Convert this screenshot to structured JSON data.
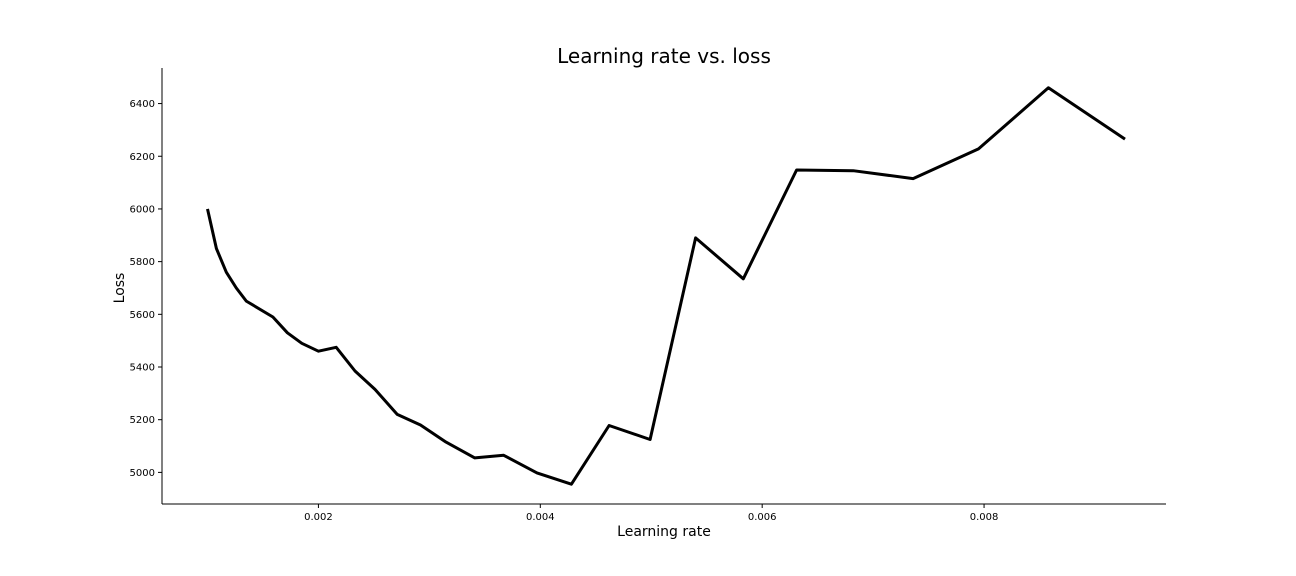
{
  "chart_data": {
    "type": "line",
    "title": "Learning rate vs. loss",
    "xlabel": "Learning rate",
    "ylabel": "Loss",
    "xlim": [
      0.00059,
      0.00964
    ],
    "ylim": [
      4880,
      6535
    ],
    "xticks": [
      0.002,
      0.004,
      0.006,
      0.008
    ],
    "xtick_labels": [
      "0.002",
      "0.004",
      "0.006",
      "0.008"
    ],
    "yticks": [
      5000,
      5200,
      5400,
      5600,
      5800,
      6000,
      6200,
      6400
    ],
    "ytick_labels": [
      "5000",
      "5200",
      "5400",
      "5600",
      "5800",
      "6000",
      "6200",
      "6400"
    ],
    "grid": false,
    "legend": "none",
    "color": "#000000",
    "series": [
      {
        "x": [
          0.001,
          0.00108,
          0.00117,
          0.00126,
          0.00135,
          0.00159,
          0.00172,
          0.00185,
          0.002,
          0.00216,
          0.00233,
          0.00251,
          0.00271,
          0.00292,
          0.00315,
          0.00341,
          0.00367,
          0.00397,
          0.00428,
          0.00462,
          0.00499,
          0.0054,
          0.00583,
          0.00631,
          0.00682,
          0.00736,
          0.00795,
          0.00858,
          0.00927
        ],
        "y": [
          6000,
          5850,
          5760,
          5700,
          5650,
          5590,
          5530,
          5490,
          5460,
          5475,
          5385,
          5315,
          5220,
          5180,
          5115,
          5055,
          5065,
          4998,
          4955,
          5178,
          5125,
          5890,
          5735,
          6148,
          6145,
          6115,
          6228,
          6460,
          6265
        ]
      }
    ]
  }
}
